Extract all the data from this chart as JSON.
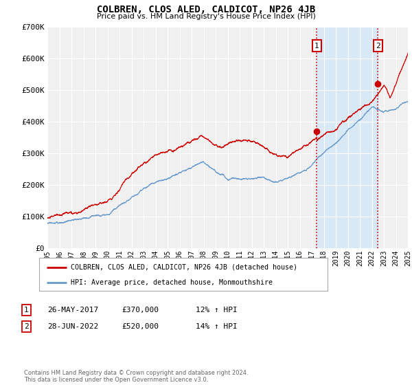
{
  "title": "COLBREN, CLOS ALED, CALDICOT, NP26 4JB",
  "subtitle": "Price paid vs. HM Land Registry's House Price Index (HPI)",
  "legend_label_red": "COLBREN, CLOS ALED, CALDICOT, NP26 4JB (detached house)",
  "legend_label_blue": "HPI: Average price, detached house, Monmouthshire",
  "annotation1_label": "1",
  "annotation1_date": "26-MAY-2017",
  "annotation1_price": "£370,000",
  "annotation1_hpi": "12% ↑ HPI",
  "annotation1_year": 2017.42,
  "annotation1_value": 370000,
  "annotation2_label": "2",
  "annotation2_date": "28-JUN-2022",
  "annotation2_price": "£520,000",
  "annotation2_hpi": "14% ↑ HPI",
  "annotation2_year": 2022.5,
  "annotation2_value": 520000,
  "xmin": 1995,
  "xmax": 2025,
  "ymin": 0,
  "ymax": 700000,
  "yticks": [
    0,
    100000,
    200000,
    300000,
    400000,
    500000,
    600000,
    700000
  ],
  "ytick_labels": [
    "£0",
    "£100K",
    "£200K",
    "£300K",
    "£400K",
    "£500K",
    "£600K",
    "£700K"
  ],
  "red_color": "#cc0000",
  "blue_color": "#6699cc",
  "background_color": "#ffffff",
  "plot_bg_color": "#f0f0f0",
  "grid_color": "#ffffff",
  "vline_color": "#cc0000",
  "span_color": "#d8e8f5",
  "footnote": "Contains HM Land Registry data © Crown copyright and database right 2024.\nThis data is licensed under the Open Government Licence v3.0."
}
